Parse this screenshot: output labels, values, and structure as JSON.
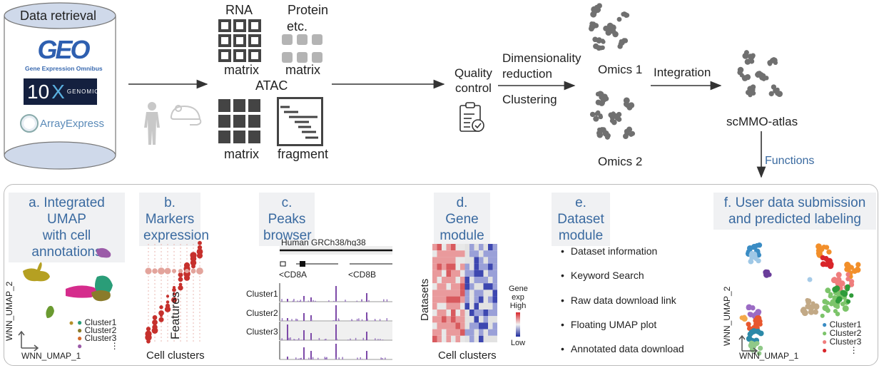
{
  "pipeline": {
    "data_retrieval": {
      "title": "Data retrieval",
      "sources": {
        "geo_logo": "GEO",
        "geo_caption": "Gene Expression Omnibus",
        "tenx_logo_number": "10",
        "tenx_logo_x": "X",
        "tenx_logo_word": "GENOMICS",
        "arrayexpress_logo": "ArrayExpress"
      }
    },
    "modalities": {
      "rna_label": "RNA",
      "rna_matrix_label": "matrix",
      "protein_label": "Protein",
      "protein_etc_label": "etc.",
      "protein_matrix_label": "matrix",
      "atac_label": "ATAC",
      "atac_matrix_label": "matrix",
      "atac_fragment_label": "fragment"
    },
    "quality_control": {
      "line1": "Quality",
      "line2": "control"
    },
    "dim_reduction": {
      "line1": "Dimensionality",
      "line2": "reduction",
      "line3": "Clustering"
    },
    "omics1_label": "Omics 1",
    "omics2_label": "Omics 2",
    "integration_label": "Integration",
    "atlas_label": "scMMO-atlas",
    "functions_label": "Functions"
  },
  "functions": {
    "a": {
      "title_line1": "a. Integrated UMAP",
      "title_line2": "with cell annotations",
      "x_axis": "WNN_UMAP_1",
      "y_axis": "WNN_UMAP_2",
      "legend": [
        "Cluster1",
        "Cluster2",
        "Cluster3"
      ],
      "legend_colors": [
        "#2a9d78",
        "#8a7b2a",
        "#d46a2a",
        "#9b5ba8"
      ],
      "ellipsis": "⋮"
    },
    "b": {
      "title_line1": "b. Markers",
      "title_line2": "expression",
      "y_axis": "Features",
      "x_axis": "Cell clusters"
    },
    "c": {
      "title_line1": "c. Peaks",
      "title_line2": "browser",
      "genome": "Human GRCh38/hg38",
      "genes": [
        "<CD8A",
        "<CD8B"
      ],
      "tracks": [
        "Cluster1",
        "Cluster2",
        "Cluster3"
      ]
    },
    "d": {
      "title_line1": "d. Gene",
      "title_line2": "module",
      "y_axis": "Datasets",
      "x_axis": "Cell clusters",
      "legend_title_1": "Gene",
      "legend_title_2": "exp",
      "legend_high": "High",
      "legend_low": "Low",
      "colors": {
        "high": "#d7262b",
        "mid": "#f2f2f2",
        "low": "#1e2a9c"
      }
    },
    "e": {
      "title_line1": "e. Dataset",
      "title_line2": "module",
      "items": [
        "Dataset information",
        "Keyword Search",
        "Raw data download link",
        "Floating UMAP plot",
        "Annotated data download"
      ]
    },
    "f": {
      "title_line1": "f. User data submission",
      "title_line2": "and predicted labeling",
      "x_axis": "WNN_UMAP_1",
      "y_axis": "WNN_UMAP_2",
      "legend": [
        "Cluster1",
        "Cluster2",
        "Cluster3"
      ],
      "legend_colors": [
        "#3a8cc4",
        "#7cc46a",
        "#ef7d7d",
        "#d9252a"
      ],
      "ellipsis": "⋮"
    }
  }
}
